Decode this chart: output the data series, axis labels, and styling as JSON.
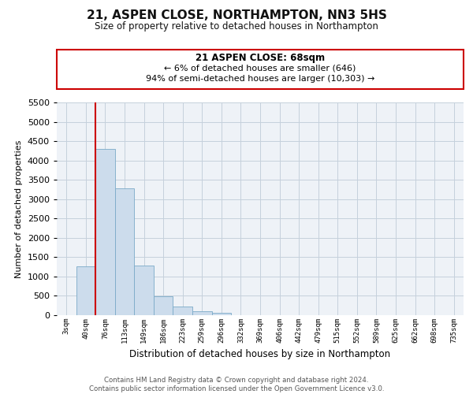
{
  "title": "21, ASPEN CLOSE, NORTHAMPTON, NN3 5HS",
  "subtitle": "Size of property relative to detached houses in Northampton",
  "xlabel": "Distribution of detached houses by size in Northampton",
  "ylabel": "Number of detached properties",
  "bar_labels": [
    "3sqm",
    "40sqm",
    "76sqm",
    "113sqm",
    "149sqm",
    "186sqm",
    "223sqm",
    "259sqm",
    "296sqm",
    "332sqm",
    "369sqm",
    "406sqm",
    "442sqm",
    "479sqm",
    "515sqm",
    "552sqm",
    "589sqm",
    "625sqm",
    "662sqm",
    "698sqm",
    "735sqm"
  ],
  "bar_heights": [
    0,
    1270,
    4300,
    3280,
    1290,
    480,
    230,
    100,
    60,
    0,
    0,
    0,
    0,
    0,
    0,
    0,
    0,
    0,
    0,
    0,
    0
  ],
  "bar_color": "#ccdcec",
  "bar_edge_color": "#7aaac8",
  "ylim": [
    0,
    5500
  ],
  "yticks": [
    0,
    500,
    1000,
    1500,
    2000,
    2500,
    3000,
    3500,
    4000,
    4500,
    5000,
    5500
  ],
  "vline_color": "#cc0000",
  "annotation_title": "21 ASPEN CLOSE: 68sqm",
  "annotation_line1": "← 6% of detached houses are smaller (646)",
  "annotation_line2": "94% of semi-detached houses are larger (10,303) →",
  "annotation_box_color": "#cc0000",
  "footer_line1": "Contains HM Land Registry data © Crown copyright and database right 2024.",
  "footer_line2": "Contains public sector information licensed under the Open Government Licence v3.0.",
  "background_color": "#eef2f7",
  "grid_color": "#c5d0dc"
}
